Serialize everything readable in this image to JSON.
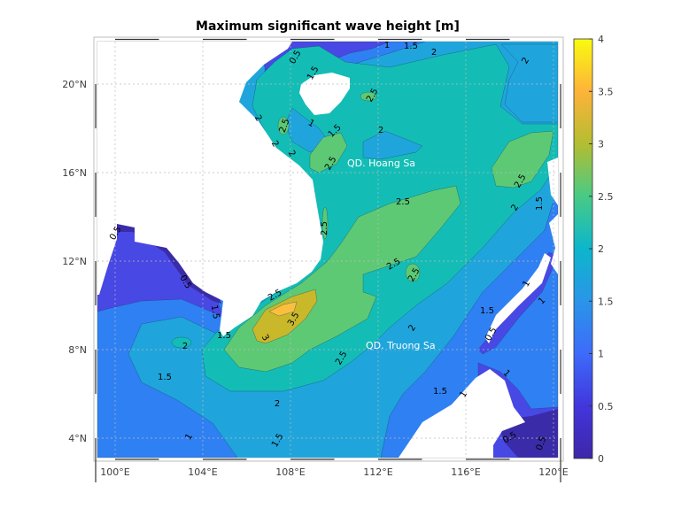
{
  "title": "Maximum significant wave height [m]",
  "colors": {
    "c0": "#3a2ca8",
    "c05": "#4848e5",
    "c1": "#2f80f3",
    "c15": "#1fa5dc",
    "c2": "#13bdb5",
    "c25": "#5dc975",
    "c3": "#c8b82a",
    "c35": "#fcbf3c",
    "land": "#ffffff"
  },
  "x_ticks": [
    "100°E",
    "104°E",
    "108°E",
    "112°E",
    "116°E",
    "120°E"
  ],
  "y_ticks": [
    "20°N",
    "16°N",
    "12°N",
    "8°N",
    "4°N"
  ],
  "colorbar": {
    "ticks": [
      "0",
      "0.5",
      "1",
      "1.5",
      "2",
      "2.5",
      "3",
      "3.5",
      "4"
    ],
    "range": [
      0,
      4
    ]
  },
  "places": [
    "QD. Hoang Sa",
    "QD. Truong Sa"
  ],
  "contour_labels": [
    "0.5",
    "0.5",
    "1.5",
    "1.5",
    "2",
    "1.5",
    "2",
    "1",
    "1.5",
    "2.5",
    "3.5",
    "3",
    "2.5",
    "2.5",
    "2",
    "2",
    "2",
    "2.5",
    "1",
    "1.5",
    "1",
    "1.5",
    "2",
    "2.5",
    "2",
    "2",
    "2.5",
    "2.5",
    "2",
    "1.5",
    "2.5",
    "2.5",
    "2",
    "2.5",
    "1.5",
    "1",
    "1",
    "1.5",
    "1",
    "0.5",
    "1",
    "0.5",
    "0.5",
    "0.5",
    "1.5"
  ],
  "chart_data": {
    "type": "heatmap",
    "title": "Maximum significant wave height [m]",
    "xlabel": "",
    "ylabel": "",
    "xlim": [
      99.2,
      120.2
    ],
    "ylim": [
      3.1,
      22
    ],
    "x_ticks": [
      100,
      104,
      108,
      112,
      116,
      120
    ],
    "y_ticks": [
      20,
      16,
      12,
      8,
      4
    ],
    "contour_levels": [
      0.5,
      1,
      1.5,
      2,
      2.5,
      3,
      3.5
    ],
    "colorbar_range": [
      0,
      4
    ],
    "max_value_region": "3.5-4 m near 9-10°N, 107-108°E"
  }
}
